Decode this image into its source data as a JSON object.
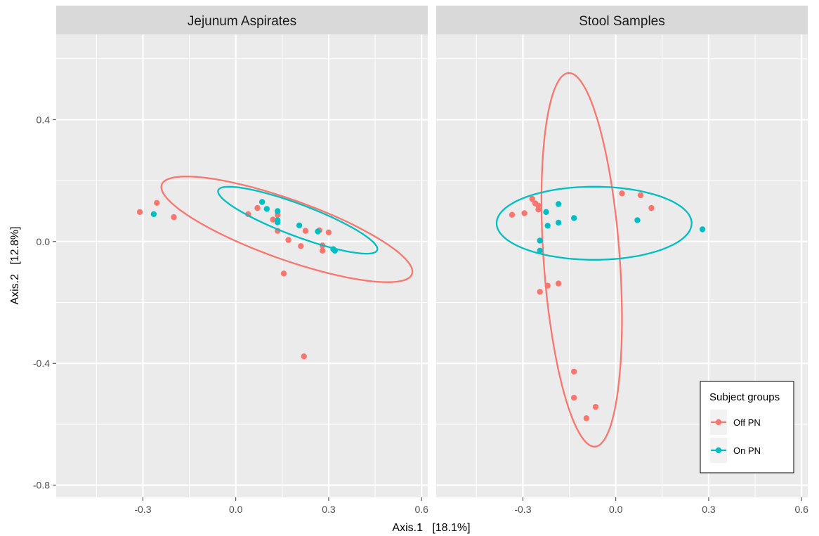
{
  "chart_data": {
    "type": "scatter",
    "xlabel": "Axis.1   [18.1%]",
    "ylabel": "Axis.2   [12.8%]",
    "xlim": [
      -0.58,
      0.62
    ],
    "ylim": [
      -0.84,
      0.68
    ],
    "x_ticks": [
      -0.3,
      0.0,
      0.3,
      0.6
    ],
    "x_tick_labels": [
      "-0.3",
      "0.0",
      "0.3",
      "0.6"
    ],
    "y_ticks": [
      -0.8,
      -0.4,
      0.0,
      0.4
    ],
    "y_tick_labels": [
      "-0.8",
      "-0.4",
      "0.0",
      "0.4"
    ],
    "grid": true,
    "legend": {
      "title": "Subject groups",
      "position": "inside-bottom-right",
      "entries": [
        {
          "label": "Off PN",
          "color": "#F8766D"
        },
        {
          "label": "On PN",
          "color": "#00BFC4"
        }
      ]
    },
    "panels": [
      {
        "title": "Jejunum Aspirates",
        "series": [
          {
            "name": "Off PN",
            "color": "#F8766D",
            "points": [
              [
                -0.31,
                0.097
              ],
              [
                -0.255,
                0.127
              ],
              [
                -0.2,
                0.08
              ],
              [
                0.04,
                0.09
              ],
              [
                0.07,
                0.11
              ],
              [
                0.12,
                0.072
              ],
              [
                0.135,
                0.088
              ],
              [
                0.135,
                0.035
              ],
              [
                0.155,
                -0.105
              ],
              [
                0.17,
                0.005
              ],
              [
                0.21,
                -0.015
              ],
              [
                0.22,
                -0.377
              ],
              [
                0.225,
                0.035
              ],
              [
                0.27,
                0.037
              ],
              [
                0.28,
                -0.013
              ],
              [
                0.28,
                -0.03
              ],
              [
                0.3,
                0.03
              ]
            ],
            "ellipse": {
              "center": [
                0.165,
                0.04
              ],
              "semi_axes": [
                0.43,
                0.098
              ],
              "angle_deg": -20
            }
          },
          {
            "name": "On PN",
            "color": "#00BFC4",
            "points": [
              [
                -0.265,
                0.09
              ],
              [
                0.085,
                0.13
              ],
              [
                0.1,
                0.107
              ],
              [
                0.135,
                0.1
              ],
              [
                0.135,
                0.07
              ],
              [
                0.135,
                0.063
              ],
              [
                0.205,
                0.053
              ],
              [
                0.265,
                0.033
              ],
              [
                0.315,
                -0.025
              ],
              [
                0.32,
                -0.03
              ]
            ],
            "ellipse": {
              "center": [
                0.2,
                0.07
              ],
              "semi_axes": [
                0.275,
                0.052
              ],
              "angle_deg": -21
            }
          }
        ]
      },
      {
        "title": "Stool Samples",
        "series": [
          {
            "name": "Off PN",
            "color": "#F8766D",
            "points": [
              [
                -0.335,
                0.088
              ],
              [
                -0.295,
                0.093
              ],
              [
                -0.27,
                0.14
              ],
              [
                -0.26,
                0.125
              ],
              [
                -0.25,
                0.118
              ],
              [
                -0.25,
                0.105
              ],
              [
                -0.245,
                -0.165
              ],
              [
                -0.22,
                -0.145
              ],
              [
                -0.185,
                -0.138
              ],
              [
                -0.135,
                -0.427
              ],
              [
                -0.135,
                -0.513
              ],
              [
                -0.065,
                -0.543
              ],
              [
                -0.095,
                -0.58
              ],
              [
                0.02,
                0.158
              ],
              [
                0.08,
                0.152
              ],
              [
                0.115,
                0.11
              ]
            ],
            "ellipse": {
              "center": [
                -0.11,
                -0.06
              ],
              "semi_axes": [
                0.615,
                0.123
              ],
              "angle_deg": 94
            }
          },
          {
            "name": "On PN",
            "color": "#00BFC4",
            "points": [
              [
                -0.245,
                0.003
              ],
              [
                -0.245,
                -0.03
              ],
              [
                -0.225,
                0.097
              ],
              [
                -0.22,
                0.052
              ],
              [
                -0.185,
                0.123
              ],
              [
                -0.185,
                0.062
              ],
              [
                -0.135,
                0.077
              ],
              [
                0.07,
                0.07
              ],
              [
                0.28,
                0.04
              ]
            ],
            "ellipse": {
              "center": [
                -0.07,
                0.06
              ],
              "semi_axes": [
                0.315,
                0.12
              ],
              "angle_deg": 0
            }
          }
        ]
      }
    ]
  }
}
